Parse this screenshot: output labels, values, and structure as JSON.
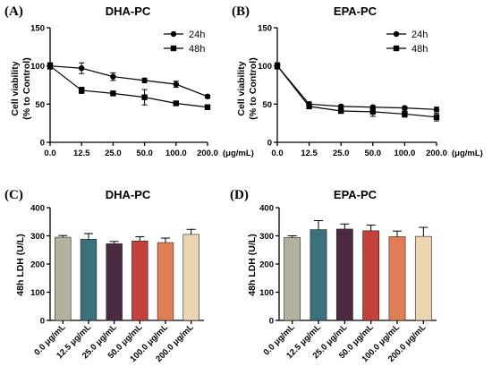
{
  "chart_data": [
    {
      "type": "line",
      "panel": "(A)",
      "title": "DHA-PC",
      "ylabel_lines": [
        "Cell viability",
        "(% to Control)"
      ],
      "x_unit": "(μg/mL)",
      "categories": [
        "0.0",
        "12.5",
        "25.0",
        "50.0",
        "100.0",
        "200.0"
      ],
      "ylim": [
        0,
        150
      ],
      "yticks": [
        "0",
        "50",
        "100",
        "150"
      ],
      "legend": "top-right",
      "series": [
        {
          "name": "24h",
          "marker": "circle",
          "values": [
            100,
            97,
            86,
            81,
            76,
            60
          ],
          "errors": [
            4,
            7,
            5,
            3,
            4,
            2
          ]
        },
        {
          "name": "48h",
          "marker": "square",
          "values": [
            100,
            68,
            64,
            59,
            51,
            46
          ],
          "errors": [
            4,
            4,
            3,
            10,
            2,
            2
          ]
        }
      ]
    },
    {
      "type": "line",
      "panel": "(B)",
      "title": "EPA-PC",
      "ylabel_lines": [
        "Cell viability",
        "(% to Control)"
      ],
      "x_unit": "(μg/mL)",
      "categories": [
        "0.0",
        "12.5",
        "25.0",
        "50.0",
        "100.0",
        "200.0"
      ],
      "ylim": [
        0,
        150
      ],
      "yticks": [
        "0",
        "50",
        "100",
        "150"
      ],
      "legend": "top-right",
      "series": [
        {
          "name": "24h",
          "marker": "circle",
          "values": [
            100,
            50,
            47,
            46,
            45,
            43
          ],
          "errors": [
            4,
            3,
            2,
            2,
            2,
            3
          ]
        },
        {
          "name": "48h",
          "marker": "square",
          "values": [
            100,
            47,
            41,
            40,
            37,
            33
          ],
          "errors": [
            4,
            3,
            3,
            6,
            4,
            5
          ]
        }
      ]
    },
    {
      "type": "bar",
      "panel": "(C)",
      "title": "DHA-PC",
      "ylabel": "48h LDH (U/L)",
      "categories": [
        "0.0 μg/mL",
        "12.5 μg/mL",
        "25.0 μg/mL",
        "50.0 μg/mL",
        "100.0 μg/mL",
        "200.0 μg/mL"
      ],
      "ylim": [
        0,
        400
      ],
      "yticks": [
        "0",
        "100",
        "200",
        "300",
        "400"
      ],
      "values": [
        295,
        288,
        272,
        282,
        276,
        305
      ],
      "errors": [
        6,
        20,
        8,
        15,
        16,
        18
      ],
      "colors": [
        "#b3b29e",
        "#3a717b",
        "#4b2a44",
        "#c2413a",
        "#e07f55",
        "#ecd5b1"
      ]
    },
    {
      "type": "bar",
      "panel": "(D)",
      "title": "EPA-PC",
      "ylabel": "48h LDH (U/L)",
      "categories": [
        "0.0 μg/mL",
        "12.5 μg/mL",
        "25.0 μg/mL",
        "50.0 μg/mL",
        "100.0 μg/mL",
        "200.0 μg/mL"
      ],
      "ylim": [
        0,
        400
      ],
      "yticks": [
        "0",
        "100",
        "200",
        "300",
        "400"
      ],
      "values": [
        294,
        322,
        324,
        318,
        297,
        298
      ],
      "errors": [
        6,
        32,
        18,
        20,
        20,
        32
      ],
      "colors": [
        "#b3b29e",
        "#3a717b",
        "#4b2a44",
        "#c2413a",
        "#e07f55",
        "#ecd5b1"
      ]
    }
  ]
}
